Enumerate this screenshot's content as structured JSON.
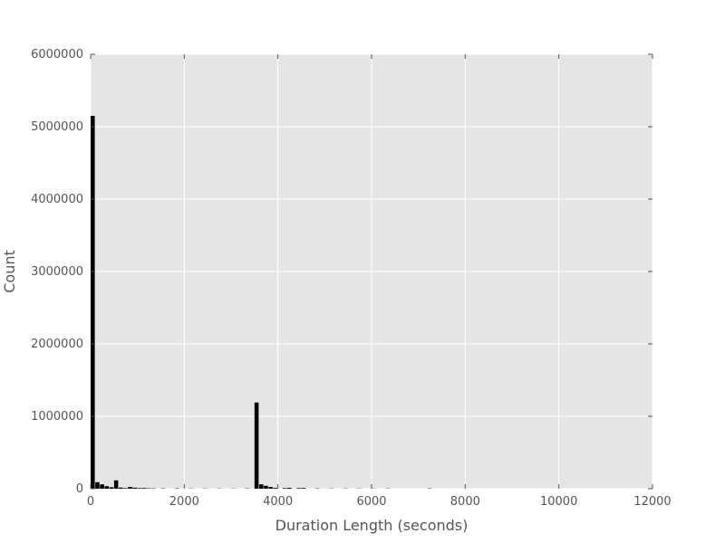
{
  "chart_data": {
    "type": "bar",
    "title": "",
    "xlabel": "Duration Length (seconds)",
    "ylabel": "Count",
    "xlim": [
      0,
      12000
    ],
    "ylim": [
      0,
      6000000
    ],
    "xticks": [
      "0",
      "2000",
      "4000",
      "6000",
      "8000",
      "10000",
      "12000"
    ],
    "yticks": [
      "0",
      "1000000",
      "2000000",
      "3000000",
      "4000000",
      "5000000",
      "6000000"
    ],
    "grid": true,
    "background": "#e5e5e5",
    "bar_color": "#000000",
    "bin_width": 100,
    "bins": [
      {
        "x": 0,
        "count": 5150000
      },
      {
        "x": 100,
        "count": 90000
      },
      {
        "x": 200,
        "count": 60000
      },
      {
        "x": 300,
        "count": 35000
      },
      {
        "x": 400,
        "count": 20000
      },
      {
        "x": 500,
        "count": 115000
      },
      {
        "x": 600,
        "count": 15000
      },
      {
        "x": 700,
        "count": 8000
      },
      {
        "x": 800,
        "count": 25000
      },
      {
        "x": 900,
        "count": 15000
      },
      {
        "x": 1000,
        "count": 8000
      },
      {
        "x": 1100,
        "count": 10000
      },
      {
        "x": 1200,
        "count": 5000
      },
      {
        "x": 1300,
        "count": 4000
      },
      {
        "x": 1500,
        "count": 4000
      },
      {
        "x": 1800,
        "count": 5000
      },
      {
        "x": 2100,
        "count": 3000
      },
      {
        "x": 2400,
        "count": 3000
      },
      {
        "x": 2700,
        "count": 3000
      },
      {
        "x": 3000,
        "count": 3000
      },
      {
        "x": 3300,
        "count": 4000
      },
      {
        "x": 3500,
        "count": 1190000
      },
      {
        "x": 3600,
        "count": 60000
      },
      {
        "x": 3700,
        "count": 40000
      },
      {
        "x": 3800,
        "count": 25000
      },
      {
        "x": 3900,
        "count": 10000
      },
      {
        "x": 4100,
        "count": 8000
      },
      {
        "x": 4200,
        "count": 12000
      },
      {
        "x": 4400,
        "count": 8000
      },
      {
        "x": 4500,
        "count": 10000
      },
      {
        "x": 4800,
        "count": 4000
      },
      {
        "x": 5100,
        "count": 3000
      },
      {
        "x": 5400,
        "count": 3000
      },
      {
        "x": 5700,
        "count": 3000
      },
      {
        "x": 6000,
        "count": 2000
      },
      {
        "x": 6300,
        "count": 3000
      },
      {
        "x": 7200,
        "count": 4000
      }
    ]
  }
}
